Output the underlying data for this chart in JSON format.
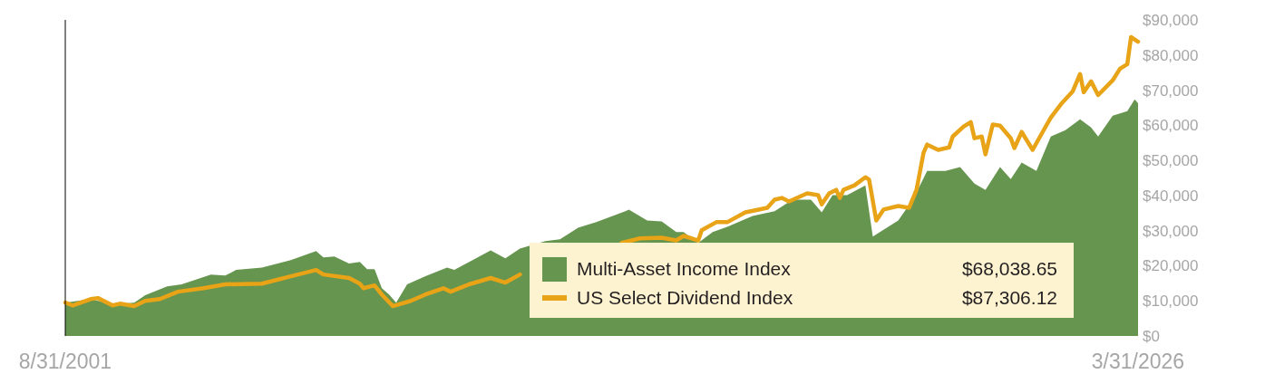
{
  "chart_data": {
    "type": "area",
    "xlim": [
      "2001-08",
      "2026-03"
    ],
    "xticks": [
      {
        "value": "2001-08",
        "label": "8/31/2001"
      },
      {
        "value": "2026-03",
        "label": "3/31/2026"
      }
    ],
    "ylim": [
      0,
      90000
    ],
    "yticks": [
      {
        "value": 0,
        "label": "$0"
      },
      {
        "value": 10000,
        "label": "$10,000"
      },
      {
        "value": 20000,
        "label": "$20,000"
      },
      {
        "value": 30000,
        "label": "$30,000"
      },
      {
        "value": 40000,
        "label": "$40,000"
      },
      {
        "value": 50000,
        "label": "$50,000"
      },
      {
        "value": 60000,
        "label": "$60,000"
      },
      {
        "value": 70000,
        "label": "$70,000"
      },
      {
        "value": 80000,
        "label": "$80,000"
      },
      {
        "value": 90000,
        "label": "$90,000"
      }
    ],
    "grid": false,
    "legend": "bottom right",
    "annotations": [
      "$68,038.65",
      "$87,306.12"
    ],
    "series": [
      {
        "name": "Multi-Asset Income Index",
        "type": "area",
        "color": "#66954f",
        "x": [
          "2001-08",
          "2002-03",
          "2002-09",
          "2003-03",
          "2003-06",
          "2003-12",
          "2004-04",
          "2004-12",
          "2005-04",
          "2005-07",
          "2006-02",
          "2006-10",
          "2007-05",
          "2007-07",
          "2007-10",
          "2008-02",
          "2008-05",
          "2008-07",
          "2008-09",
          "2008-11",
          "2009-01",
          "2009-03",
          "2009-06",
          "2009-11",
          "2010-05",
          "2010-07",
          "2010-12",
          "2011-05",
          "2011-09",
          "2012-01",
          "2012-08",
          "2012-12",
          "2013-05",
          "2013-10",
          "2014-06",
          "2014-07",
          "2014-12",
          "2015-04",
          "2015-08",
          "2015-10",
          "2016-02",
          "2016-06",
          "2016-10",
          "2017-05",
          "2017-11",
          "2018-04",
          "2018-09",
          "2018-12",
          "2019-03",
          "2019-07",
          "2019-12",
          "2020-02",
          "2020-09",
          "2021-01",
          "2021-05",
          "2021-10",
          "2022-02",
          "2022-06",
          "2022-09",
          "2023-01",
          "2023-04",
          "2023-07",
          "2023-11",
          "2024-03",
          "2024-07",
          "2024-11",
          "2025-02",
          "2025-04",
          "2025-08",
          "2025-12",
          "2026-02",
          "2026-03"
        ],
        "values": [
          9500,
          10500,
          9000,
          9500,
          11600,
          14100,
          14700,
          17500,
          17200,
          18800,
          19500,
          21600,
          24200,
          22400,
          22600,
          20600,
          21100,
          19000,
          19000,
          13600,
          11800,
          9500,
          14700,
          17000,
          19500,
          18800,
          21600,
          24400,
          22100,
          24900,
          27000,
          27500,
          30800,
          32400,
          35500,
          36000,
          32900,
          32600,
          29600,
          29600,
          26500,
          29600,
          31100,
          34200,
          35500,
          38800,
          38800,
          35200,
          40100,
          40100,
          42900,
          28300,
          32900,
          38800,
          47000,
          47000,
          48100,
          43400,
          41600,
          48100,
          44700,
          49400,
          47000,
          56800,
          58600,
          61700,
          59400,
          56800,
          62700,
          64000,
          67400,
          66300
        ]
      },
      {
        "name": "US Select Dividend Index",
        "type": "line",
        "color": "#e8a317",
        "x": [
          "2001-08",
          "2001-10",
          "2002-03",
          "2002-05",
          "2002-09",
          "2002-11",
          "2003-03",
          "2003-06",
          "2003-10",
          "2004-03",
          "2004-10",
          "2005-04",
          "2006-02",
          "2006-10",
          "2007-05",
          "2007-07",
          "2008-02",
          "2008-05",
          "2008-06",
          "2008-09",
          "2008-11",
          "2009-02",
          "2009-07",
          "2009-11",
          "2010-04",
          "2010-06",
          "2010-11",
          "2011-05",
          "2011-09",
          "2012-01",
          "2013-04",
          "2014-05",
          "2014-10",
          "2015-04",
          "2015-08",
          "2015-10",
          "2016-02",
          "2016-03",
          "2016-07",
          "2016-10",
          "2017-03",
          "2017-09",
          "2017-11",
          "2018-01",
          "2018-03",
          "2018-08",
          "2018-11",
          "2018-12",
          "2019-02",
          "2019-04",
          "2019-05",
          "2019-06",
          "2019-09",
          "2019-12",
          "2020-01",
          "2020-03",
          "2020-05",
          "2020-09",
          "2020-12",
          "2021-02",
          "2021-04",
          "2021-05",
          "2021-08",
          "2021-11",
          "2021-12",
          "2022-03",
          "2022-05",
          "2022-06",
          "2022-08",
          "2022-09",
          "2022-11",
          "2023-01",
          "2023-04",
          "2023-05",
          "2023-07",
          "2023-10",
          "2024-01",
          "2024-03",
          "2024-06",
          "2024-09",
          "2024-11",
          "2024-12",
          "2025-02",
          "2025-04",
          "2025-08",
          "2025-10",
          "2025-12",
          "2026-01",
          "2026-03"
        ],
        "values": [
          9500,
          8700,
          10500,
          10800,
          8700,
          9200,
          8500,
          10000,
          10500,
          12600,
          13600,
          14700,
          14900,
          17000,
          18800,
          17500,
          16500,
          14900,
          13600,
          14400,
          11800,
          8500,
          10000,
          11800,
          13600,
          12600,
          14700,
          16500,
          15200,
          17500,
          null,
          26500,
          27800,
          28000,
          27200,
          28500,
          27200,
          30100,
          32400,
          32400,
          35200,
          36500,
          38800,
          39300,
          38300,
          40600,
          40100,
          37500,
          40600,
          41600,
          39300,
          41600,
          42900,
          45200,
          44500,
          32900,
          36000,
          37000,
          36500,
          41600,
          52200,
          54500,
          53000,
          53700,
          56800,
          59600,
          60900,
          56300,
          56800,
          51700,
          60200,
          59900,
          56300,
          53500,
          58100,
          53000,
          58600,
          62200,
          66300,
          69700,
          74600,
          69400,
          72500,
          68600,
          72800,
          76100,
          77400,
          85100,
          83800
        ]
      }
    ]
  }
}
